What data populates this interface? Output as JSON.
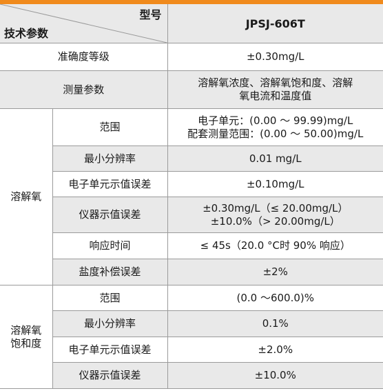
{
  "header": {
    "model_label": "型号",
    "params_label": "技术参数",
    "model_value": "JPSJ-606T"
  },
  "general": {
    "accuracy_label": "准确度等级",
    "accuracy_value": "±0.30mg/L",
    "measure_label": "测量参数",
    "measure_value_line1": "溶解氧浓度、溶解氧饱和度、溶解",
    "measure_value_line2": "氧电流和温度值"
  },
  "do": {
    "group_label": "溶解氧",
    "rows": [
      {
        "label": "范围",
        "line1": "电子单元：(0.00 ～ 99.99)mg/L",
        "line2": "配套测量范围：(0.00 ～ 50.00)mg/L"
      },
      {
        "label": "最小分辨率",
        "line1": "0.01 mg/L"
      },
      {
        "label": "电子单元示值误差",
        "line1": "±0.10mg/L"
      },
      {
        "label": "仪器示值误差",
        "line1": "±0.30mg/L（≤ 20.00mg/L）",
        "line2": "±10.0%（> 20.00mg/L）"
      },
      {
        "label": "响应时间",
        "line1": "≤ 45s（20.0 °C时 90% 响应）"
      },
      {
        "label": "盐度补偿误差",
        "line1": "±2%"
      }
    ]
  },
  "sat": {
    "group_label_line1": "溶解氧",
    "group_label_line2": "饱和度",
    "rows": [
      {
        "label": "范围",
        "line1": "(0.0 ～600.0)%"
      },
      {
        "label": "最小分辨率",
        "line1": "0.1%"
      },
      {
        "label": "电子单元示值误差",
        "line1": "±2.0%"
      },
      {
        "label": "仪器示值误差",
        "line1": "±10.0%"
      }
    ]
  },
  "colors": {
    "accent": "#f08a1c",
    "shade": "#e9e9e9",
    "border": "#9a9a9a"
  }
}
